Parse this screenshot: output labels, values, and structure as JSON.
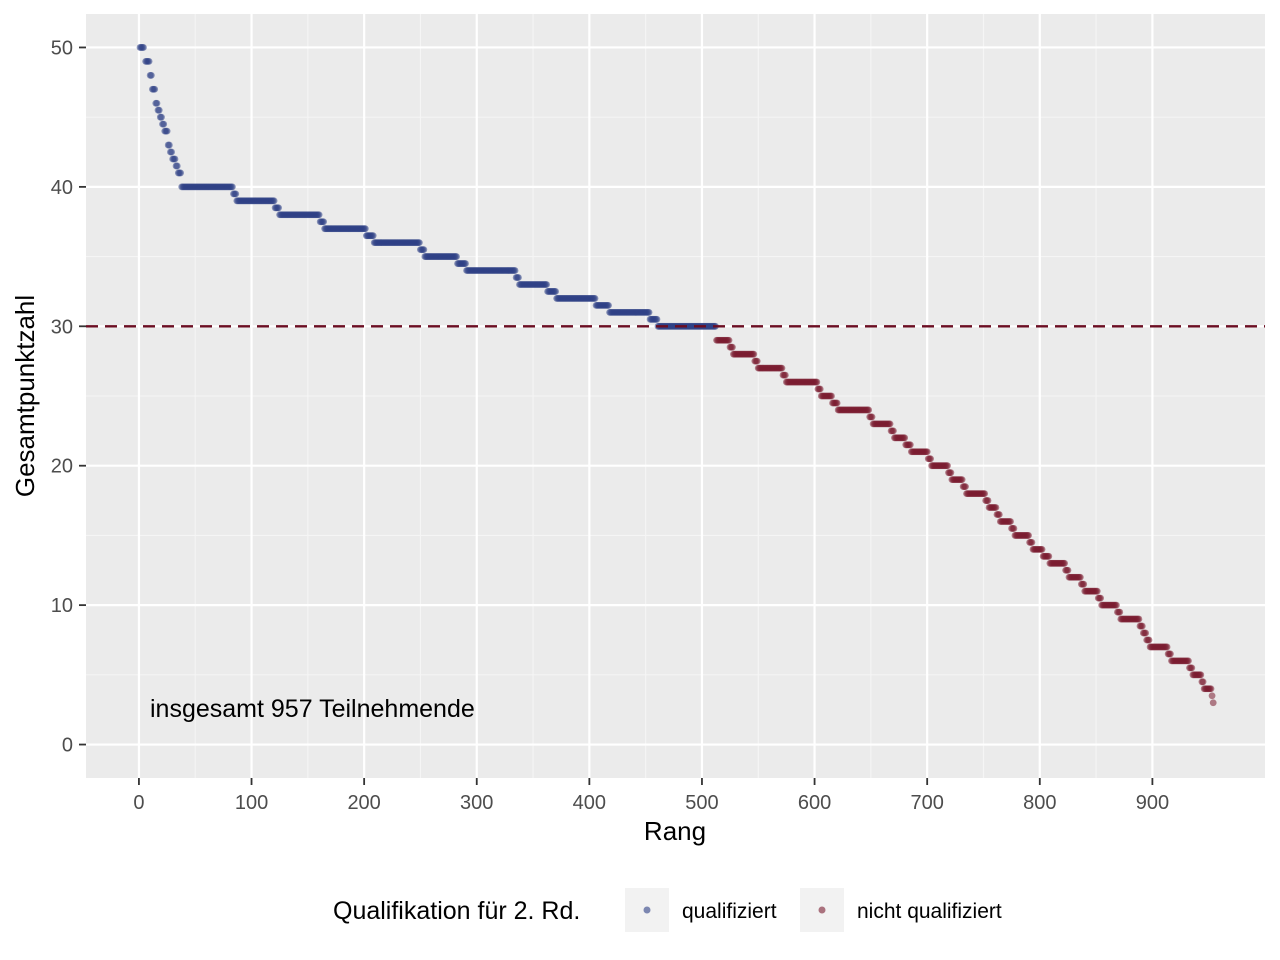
{
  "chart_data": {
    "type": "scatter",
    "xlabel": "Rang",
    "ylabel": "Gesamtpunktzahl",
    "xlim": [
      -47,
      1000
    ],
    "ylim": [
      -2.4,
      52.4
    ],
    "x_ticks": [
      0,
      100,
      200,
      300,
      400,
      500,
      600,
      700,
      800,
      900
    ],
    "y_ticks": [
      0,
      10,
      20,
      30,
      40,
      50
    ],
    "grid": true,
    "annotation": "insgesamt 957 Teilnehmende",
    "threshold": {
      "y": 30,
      "style": "dashed",
      "color": "#6b0d22"
    },
    "legend": {
      "title": "Qualifikation für 2. Rd.",
      "position": "bottom",
      "entries": [
        {
          "label": "qualifiziert",
          "color": "#2d3f85"
        },
        {
          "label": "nicht qualifiziert",
          "color": "#7a1c30"
        }
      ]
    },
    "series": [
      {
        "name": "qualifiziert",
        "color": "#2d3f85",
        "steps": [
          [
            1,
            4,
            50
          ],
          [
            6,
            9,
            49
          ],
          [
            10,
            11,
            48
          ],
          [
            12,
            14,
            47
          ],
          [
            15,
            16,
            46
          ],
          [
            17,
            18,
            45.5
          ],
          [
            19,
            20,
            45
          ],
          [
            21,
            22,
            44.5
          ],
          [
            23,
            25,
            44
          ],
          [
            26,
            27,
            43
          ],
          [
            28,
            29,
            42.5
          ],
          [
            30,
            32,
            42
          ],
          [
            33,
            34,
            41.5
          ],
          [
            35,
            37,
            41
          ],
          [
            38,
            83,
            40
          ],
          [
            84,
            86,
            39.5
          ],
          [
            87,
            120,
            39
          ],
          [
            121,
            124,
            38.5
          ],
          [
            125,
            160,
            38
          ],
          [
            161,
            164,
            37.5
          ],
          [
            165,
            201,
            37
          ],
          [
            202,
            208,
            36.5
          ],
          [
            209,
            249,
            36
          ],
          [
            250,
            253,
            35.5
          ],
          [
            254,
            282,
            35
          ],
          [
            283,
            290,
            34.5
          ],
          [
            291,
            334,
            34
          ],
          [
            335,
            337,
            33.5
          ],
          [
            338,
            362,
            33
          ],
          [
            363,
            370,
            32.5
          ],
          [
            371,
            405,
            32
          ],
          [
            406,
            417,
            31.5
          ],
          [
            418,
            453,
            31
          ],
          [
            454,
            460,
            30.5
          ],
          [
            461,
            512,
            30
          ]
        ]
      },
      {
        "name": "nicht qualifiziert",
        "color": "#7a1c30",
        "steps": [
          [
            513,
            524,
            29
          ],
          [
            525,
            527,
            28.5
          ],
          [
            528,
            546,
            28
          ],
          [
            547,
            549,
            27.5
          ],
          [
            550,
            571,
            27
          ],
          [
            572,
            574,
            26.5
          ],
          [
            575,
            602,
            26
          ],
          [
            603,
            605,
            25.5
          ],
          [
            606,
            615,
            25
          ],
          [
            616,
            620,
            24.5
          ],
          [
            621,
            648,
            24
          ],
          [
            649,
            651,
            23.5
          ],
          [
            652,
            667,
            23
          ],
          [
            668,
            670,
            22.5
          ],
          [
            671,
            680,
            22
          ],
          [
            681,
            685,
            21.5
          ],
          [
            686,
            700,
            21
          ],
          [
            701,
            703,
            20.5
          ],
          [
            704,
            718,
            20
          ],
          [
            719,
            721,
            19.5
          ],
          [
            722,
            731,
            19
          ],
          [
            732,
            734,
            18.5
          ],
          [
            735,
            751,
            18
          ],
          [
            752,
            754,
            17.5
          ],
          [
            755,
            761,
            17
          ],
          [
            762,
            764,
            16.5
          ],
          [
            765,
            774,
            16
          ],
          [
            775,
            777,
            15.5
          ],
          [
            778,
            790,
            15
          ],
          [
            791,
            793,
            14.5
          ],
          [
            794,
            802,
            14
          ],
          [
            803,
            805,
            13.5
          ],
          [
            806,
            808,
            13.5
          ],
          [
            809,
            822,
            13
          ],
          [
            823,
            825,
            12.5
          ],
          [
            826,
            836,
            12
          ],
          [
            837,
            839,
            11.5
          ],
          [
            840,
            851,
            11
          ],
          [
            852,
            854,
            10.5
          ],
          [
            855,
            868,
            10
          ],
          [
            869,
            871,
            9.5
          ],
          [
            872,
            888,
            9
          ],
          [
            889,
            891,
            8.5
          ],
          [
            892,
            894,
            8
          ],
          [
            895,
            897,
            7.5
          ],
          [
            898,
            913,
            7
          ],
          [
            914,
            916,
            6.5
          ],
          [
            917,
            932,
            6
          ],
          [
            933,
            935,
            5.5
          ],
          [
            936,
            943,
            5
          ],
          [
            944,
            945,
            4.5
          ],
          [
            946,
            952,
            4
          ],
          [
            953,
            953,
            3.5
          ],
          [
            954,
            954,
            3
          ]
        ]
      }
    ]
  }
}
